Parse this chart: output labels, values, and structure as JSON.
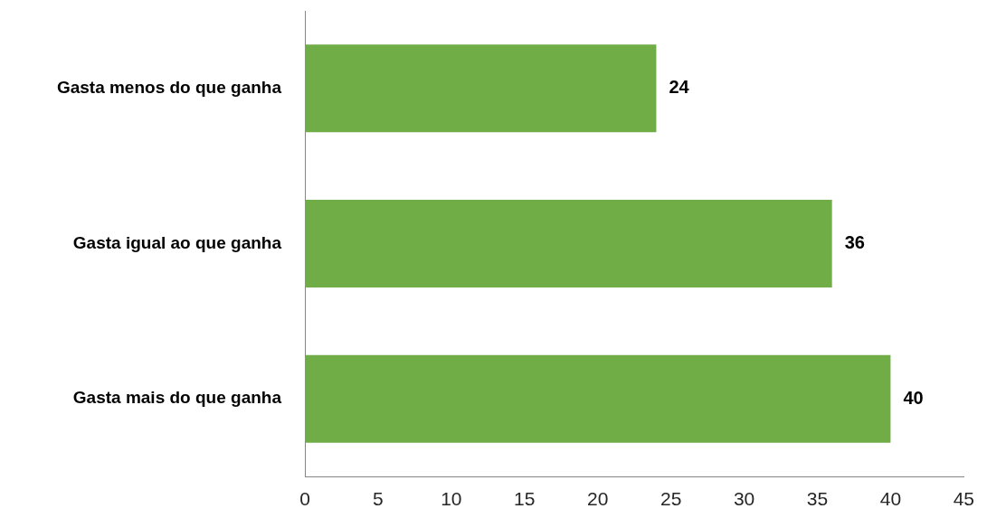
{
  "chart_data": {
    "type": "bar",
    "orientation": "horizontal",
    "categories": [
      "Gasta menos do que ganha",
      "Gasta igual ao que ganha",
      "Gasta mais do que ganha"
    ],
    "values": [
      24,
      36,
      40
    ],
    "color": "#70ad47",
    "xlim": [
      0,
      45
    ],
    "xticks": [
      0,
      5,
      10,
      15,
      20,
      25,
      30,
      35,
      40,
      45
    ],
    "grid": false,
    "legend": false,
    "data_labels": true
  }
}
